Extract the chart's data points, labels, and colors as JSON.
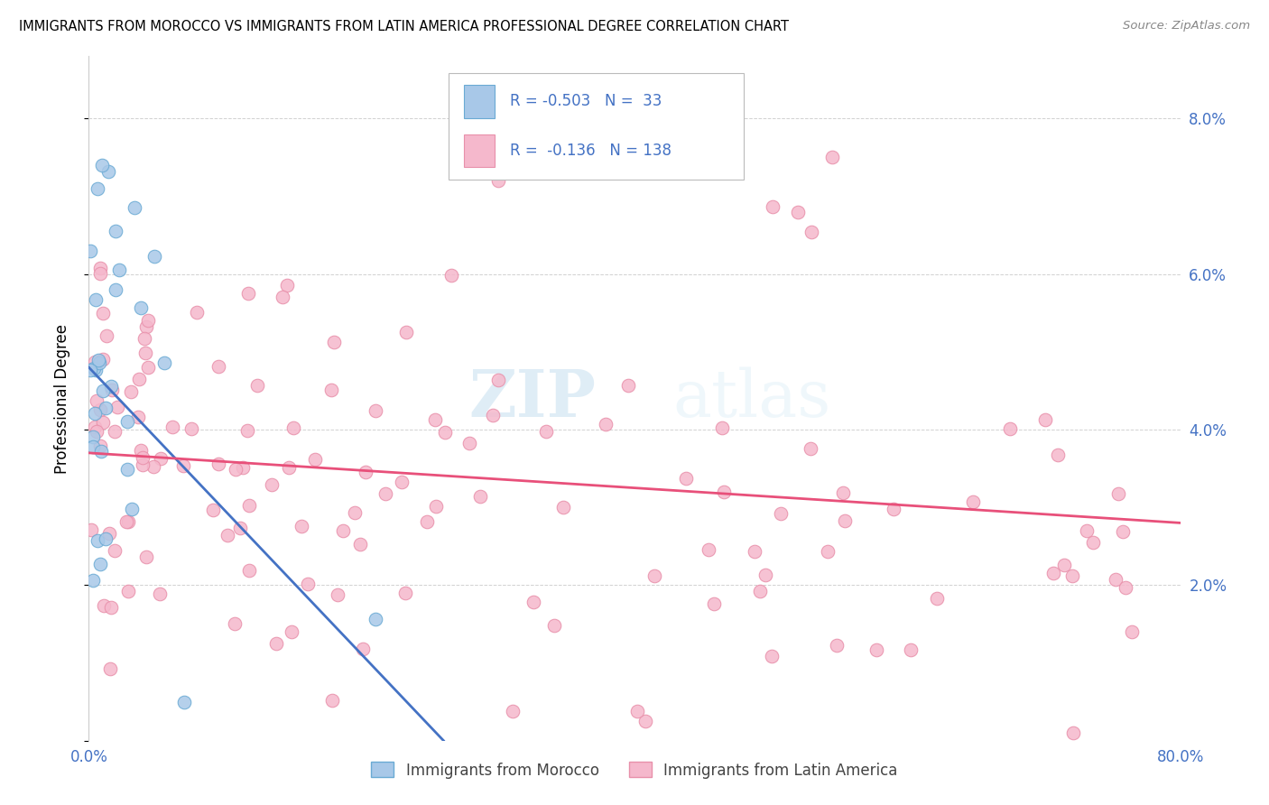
{
  "title": "IMMIGRANTS FROM MOROCCO VS IMMIGRANTS FROM LATIN AMERICA PROFESSIONAL DEGREE CORRELATION CHART",
  "source": "Source: ZipAtlas.com",
  "ylabel": "Professional Degree",
  "xlim": [
    0.0,
    0.8
  ],
  "ylim": [
    0.0,
    0.088
  ],
  "yticks": [
    0.0,
    0.02,
    0.04,
    0.06,
    0.08
  ],
  "xticks": [
    0.0,
    0.1,
    0.2,
    0.3,
    0.4,
    0.5,
    0.6,
    0.7,
    0.8
  ],
  "xtick_labels": [
    "0.0%",
    "",
    "",
    "",
    "",
    "",
    "",
    "",
    "80.0%"
  ],
  "ytick_labels_right": [
    "",
    "2.0%",
    "4.0%",
    "6.0%",
    "8.0%"
  ],
  "morocco_color": "#a8c8e8",
  "latin_color": "#f5b8cc",
  "morocco_edge": "#6aaad4",
  "latin_edge": "#e890aa",
  "line_morocco_color": "#4472c4",
  "line_latin_color": "#e8507a",
  "tick_color": "#4472c4",
  "morocco_R": -0.503,
  "morocco_N": 33,
  "latin_R": -0.136,
  "latin_N": 138,
  "watermark_zip": "ZIP",
  "watermark_atlas": "atlas",
  "legend_label_morocco": "Immigrants from Morocco",
  "legend_label_latin": "Immigrants from Latin America",
  "morocco_line_x0": 0.0,
  "morocco_line_y0": 0.048,
  "morocco_line_x1": 0.26,
  "morocco_line_y1": 0.0,
  "latin_line_x0": 0.0,
  "latin_line_y0": 0.037,
  "latin_line_x1": 0.8,
  "latin_line_y1": 0.028
}
